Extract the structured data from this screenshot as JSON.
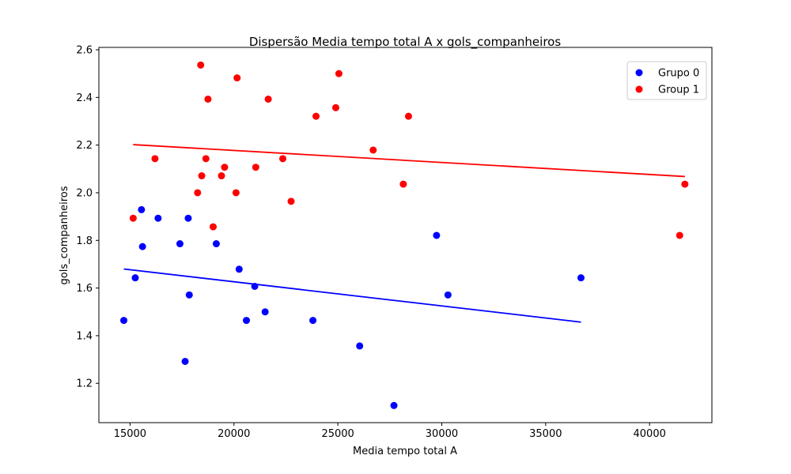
{
  "chart_data": {
    "type": "scatter",
    "title": "Dispersão Media tempo total A x gols_companheiros",
    "xlabel": "Media tempo total A",
    "ylabel": "gols_companheiros",
    "xlim": [
      13500,
      43000
    ],
    "ylim": [
      1.035,
      2.61
    ],
    "xticks": [
      15000,
      20000,
      25000,
      30000,
      35000,
      40000
    ],
    "yticks": [
      1.2,
      1.4,
      1.6,
      1.8,
      2.0,
      2.2,
      2.4,
      2.6
    ],
    "grid": false,
    "legend_position": "top-right",
    "series": [
      {
        "name": "Grupo 0",
        "color": "#0000ff",
        "points": [
          [
            14700,
            1.464
          ],
          [
            15250,
            1.643
          ],
          [
            15550,
            1.929
          ],
          [
            15600,
            1.774
          ],
          [
            16350,
            1.893
          ],
          [
            17400,
            1.786
          ],
          [
            17650,
            1.292
          ],
          [
            17800,
            1.893
          ],
          [
            17850,
            1.571
          ],
          [
            19150,
            1.786
          ],
          [
            20250,
            1.679
          ],
          [
            20600,
            1.464
          ],
          [
            21000,
            1.607
          ],
          [
            21500,
            1.5
          ],
          [
            23800,
            1.464
          ],
          [
            26050,
            1.357
          ],
          [
            27700,
            1.107
          ],
          [
            29750,
            1.821
          ],
          [
            30300,
            1.571
          ],
          [
            36700,
            1.643
          ]
        ],
        "trend": [
          [
            14700,
            1.68
          ],
          [
            36700,
            1.457
          ]
        ]
      },
      {
        "name": "Group 1",
        "color": "#ff0000",
        "points": [
          [
            15150,
            1.893
          ],
          [
            16200,
            2.143
          ],
          [
            18250,
            2.0
          ],
          [
            18400,
            2.536
          ],
          [
            18450,
            2.071
          ],
          [
            18650,
            2.143
          ],
          [
            18750,
            2.393
          ],
          [
            19000,
            1.857
          ],
          [
            19400,
            2.071
          ],
          [
            19550,
            2.107
          ],
          [
            20100,
            2.0
          ],
          [
            20150,
            2.482
          ],
          [
            21050,
            2.107
          ],
          [
            21650,
            2.393
          ],
          [
            22350,
            2.143
          ],
          [
            22750,
            1.964
          ],
          [
            23950,
            2.321
          ],
          [
            24900,
            2.357
          ],
          [
            25050,
            2.5
          ],
          [
            26700,
            2.179
          ],
          [
            28150,
            2.036
          ],
          [
            28400,
            2.321
          ],
          [
            41450,
            1.821
          ],
          [
            41700,
            2.036
          ]
        ],
        "trend": [
          [
            15150,
            2.202
          ],
          [
            41700,
            2.068
          ]
        ]
      }
    ]
  }
}
